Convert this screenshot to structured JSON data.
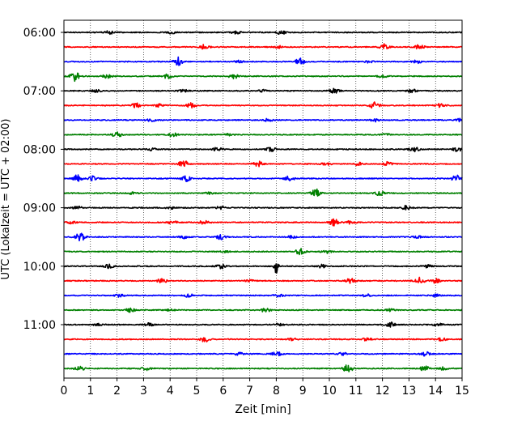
{
  "chart_data": {
    "type": "line",
    "title": "",
    "xlabel": "Zeit  [min]",
    "ylabel": "UTC (Lokalzeit = UTC + 02:00)",
    "xlim": [
      0,
      15
    ],
    "x_ticks": [
      0,
      1,
      2,
      3,
      4,
      5,
      6,
      7,
      8,
      9,
      10,
      11,
      12,
      13,
      14,
      15
    ],
    "x_tick_labels": [
      "0",
      "1",
      "2",
      "3",
      "4",
      "5",
      "6",
      "7",
      "8",
      "9",
      "10",
      "11",
      "12",
      "13",
      "14",
      "15"
    ],
    "y_tick_labels": [
      "06:00",
      "07:00",
      "08:00",
      "09:00",
      "10:00",
      "11:00"
    ],
    "y_tick_rows": [
      0,
      4,
      8,
      12,
      16,
      20
    ],
    "grid": "vertical dotted at each minute",
    "trace_interval_minutes": 15,
    "start_time_utc": "06:00",
    "colors": [
      "#000000",
      "#ff0000",
      "#0000ff",
      "#008000"
    ],
    "traces": [
      {
        "start": "06:00",
        "color": "#000000",
        "events": [
          [
            1.7,
            0.6
          ],
          [
            4.1,
            0.7
          ],
          [
            6.5,
            0.5
          ],
          [
            8.2,
            0.8
          ]
        ]
      },
      {
        "start": "06:15",
        "color": "#ff0000",
        "events": [
          [
            5.3,
            0.9
          ],
          [
            12.1,
            1.3
          ],
          [
            13.4,
            0.8
          ],
          [
            8.1,
            0.4
          ]
        ]
      },
      {
        "start": "06:30",
        "color": "#0000ff",
        "events": [
          [
            4.3,
            1.6
          ],
          [
            8.9,
            1.3
          ],
          [
            6.6,
            0.4
          ],
          [
            11.5,
            0.5
          ],
          [
            13.3,
            0.6
          ]
        ]
      },
      {
        "start": "06:45",
        "color": "#008000",
        "events": [
          [
            0.4,
            1.8
          ],
          [
            1.6,
            0.7
          ],
          [
            3.9,
            0.8
          ],
          [
            6.4,
            0.8
          ],
          [
            12.0,
            0.5
          ]
        ]
      },
      {
        "start": "07:00",
        "color": "#000000",
        "events": [
          [
            1.2,
            0.5
          ],
          [
            4.5,
            0.5
          ],
          [
            10.2,
            0.9
          ],
          [
            13.1,
            0.6
          ],
          [
            7.5,
            0.4
          ]
        ]
      },
      {
        "start": "07:15",
        "color": "#ff0000",
        "events": [
          [
            2.7,
            1.0
          ],
          [
            3.6,
            0.6
          ],
          [
            4.8,
            0.9
          ],
          [
            11.7,
            1.2
          ],
          [
            14.2,
            0.8
          ]
        ]
      },
      {
        "start": "07:30",
        "color": "#0000ff",
        "events": [
          [
            3.3,
            0.5
          ],
          [
            7.7,
            0.5
          ],
          [
            11.7,
            0.6
          ],
          [
            14.9,
            0.5
          ]
        ]
      },
      {
        "start": "07:45",
        "color": "#008000",
        "events": [
          [
            2.0,
            1.0
          ],
          [
            4.1,
            0.7
          ],
          [
            6.2,
            0.4
          ],
          [
            12.1,
            0.4
          ]
        ]
      },
      {
        "start": "08:00",
        "color": "#000000",
        "events": [
          [
            3.3,
            0.6
          ],
          [
            5.8,
            0.7
          ],
          [
            7.8,
            0.8
          ],
          [
            13.2,
            1.0
          ],
          [
            14.8,
            0.9
          ]
        ]
      },
      {
        "start": "08:15",
        "color": "#ff0000",
        "events": [
          [
            4.5,
            1.3
          ],
          [
            7.3,
            1.0
          ],
          [
            9.9,
            0.6
          ],
          [
            11.1,
            0.6
          ],
          [
            12.2,
            0.7
          ]
        ]
      },
      {
        "start": "08:30",
        "color": "#0000ff",
        "events": [
          [
            0.5,
            1.3
          ],
          [
            1.1,
            0.9
          ],
          [
            4.6,
            1.0
          ],
          [
            8.5,
            0.9
          ],
          [
            14.8,
            1.4
          ]
        ]
      },
      {
        "start": "08:45",
        "color": "#008000",
        "events": [
          [
            9.5,
            1.5
          ],
          [
            11.9,
            0.9
          ],
          [
            5.5,
            0.4
          ],
          [
            2.6,
            0.4
          ]
        ]
      },
      {
        "start": "09:00",
        "color": "#000000",
        "events": [
          [
            0.5,
            0.6
          ],
          [
            4.0,
            0.5
          ],
          [
            5.9,
            0.5
          ],
          [
            12.9,
            0.8
          ]
        ]
      },
      {
        "start": "09:15",
        "color": "#ff0000",
        "events": [
          [
            0.3,
            0.6
          ],
          [
            4.1,
            0.6
          ],
          [
            5.3,
            1.0
          ],
          [
            10.2,
            1.4
          ],
          [
            10.8,
            0.6
          ]
        ]
      },
      {
        "start": "09:30",
        "color": "#0000ff",
        "events": [
          [
            0.6,
            1.8
          ],
          [
            4.5,
            0.5
          ],
          [
            5.9,
            0.9
          ],
          [
            8.6,
            0.5
          ],
          [
            13.3,
            0.6
          ]
        ]
      },
      {
        "start": "09:45",
        "color": "#008000",
        "events": [
          [
            8.9,
            1.1
          ],
          [
            9.9,
            0.6
          ],
          [
            6.1,
            0.3
          ]
        ]
      },
      {
        "start": "10:00",
        "color": "#000000",
        "events": [
          [
            1.7,
            0.7
          ],
          [
            5.9,
            0.9
          ],
          [
            8.0,
            3.0
          ],
          [
            9.7,
            0.6
          ],
          [
            13.7,
            0.5
          ]
        ]
      },
      {
        "start": "10:15",
        "color": "#ff0000",
        "events": [
          [
            3.7,
            1.0
          ],
          [
            10.8,
            0.9
          ],
          [
            13.4,
            1.2
          ],
          [
            14.0,
            0.8
          ],
          [
            7.0,
            0.4
          ]
        ]
      },
      {
        "start": "10:30",
        "color": "#0000ff",
        "events": [
          [
            2.1,
            0.6
          ],
          [
            4.7,
            0.6
          ],
          [
            8.1,
            0.5
          ],
          [
            11.4,
            0.5
          ],
          [
            14.0,
            0.5
          ]
        ]
      },
      {
        "start": "10:45",
        "color": "#008000",
        "events": [
          [
            2.5,
            0.7
          ],
          [
            7.6,
            0.8
          ],
          [
            12.3,
            0.4
          ],
          [
            4.0,
            0.3
          ]
        ]
      },
      {
        "start": "11:00",
        "color": "#000000",
        "events": [
          [
            1.3,
            0.5
          ],
          [
            3.2,
            0.5
          ],
          [
            12.3,
            0.9
          ],
          [
            14.1,
            0.6
          ],
          [
            8.1,
            0.4
          ]
        ]
      },
      {
        "start": "11:15",
        "color": "#ff0000",
        "events": [
          [
            5.3,
            1.2
          ],
          [
            11.4,
            0.5
          ],
          [
            14.2,
            0.8
          ],
          [
            8.6,
            0.4
          ]
        ]
      },
      {
        "start": "11:30",
        "color": "#0000ff",
        "events": [
          [
            6.6,
            0.6
          ],
          [
            8.0,
            0.9
          ],
          [
            10.5,
            0.5
          ],
          [
            13.6,
            0.9
          ]
        ]
      },
      {
        "start": "11:45",
        "color": "#008000",
        "events": [
          [
            0.6,
            0.9
          ],
          [
            3.1,
            0.6
          ],
          [
            10.7,
            1.4
          ],
          [
            13.6,
            1.0
          ],
          [
            14.3,
            0.6
          ]
        ]
      }
    ]
  }
}
